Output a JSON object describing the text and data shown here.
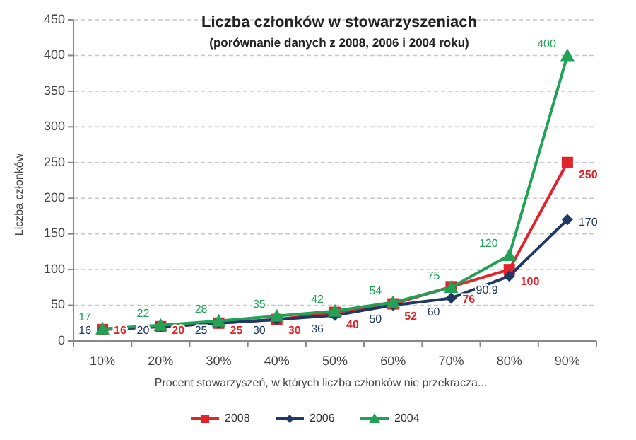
{
  "chart_data": {
    "type": "line",
    "title": "Liczba członków w stowarzyszeniach",
    "subtitle": "(porównanie danych z 2008, 2006 i 2004 roku)",
    "xlabel": "Procent stowarzyszeń, w których liczba członków nie przekracza...",
    "ylabel": "Liczba członków",
    "categories": [
      "10%",
      "20%",
      "30%",
      "40%",
      "50%",
      "60%",
      "70%",
      "80%",
      "90%"
    ],
    "ylim": [
      0,
      450
    ],
    "yticks": [
      0,
      50,
      100,
      150,
      200,
      250,
      300,
      350,
      400,
      450
    ],
    "grid": "y",
    "legend": "bottom",
    "data_labels": true,
    "series": [
      {
        "name": "2008",
        "color": "#e0242b",
        "marker": "square",
        "values": [
          16,
          20,
          25,
          30,
          40,
          52,
          76,
          100,
          250
        ],
        "value_labels": [
          "16",
          "20",
          "25",
          "30",
          "40",
          "52",
          "76",
          "100",
          "250"
        ]
      },
      {
        "name": "2006",
        "color": "#1f3864",
        "marker": "diamond",
        "values": [
          16,
          20,
          25,
          30,
          36,
          50,
          60,
          90.9,
          170
        ],
        "value_labels": [
          "16",
          "20",
          "25",
          "30",
          "36",
          "50",
          "60",
          "90,9",
          "170"
        ]
      },
      {
        "name": "2004",
        "color": "#21a255",
        "marker": "triangle",
        "values": [
          17,
          22,
          28,
          35,
          42,
          54,
          75,
          120,
          400
        ],
        "value_labels": [
          "17",
          "22",
          "28",
          "35",
          "42",
          "54",
          "75",
          "120",
          "400"
        ]
      }
    ]
  }
}
